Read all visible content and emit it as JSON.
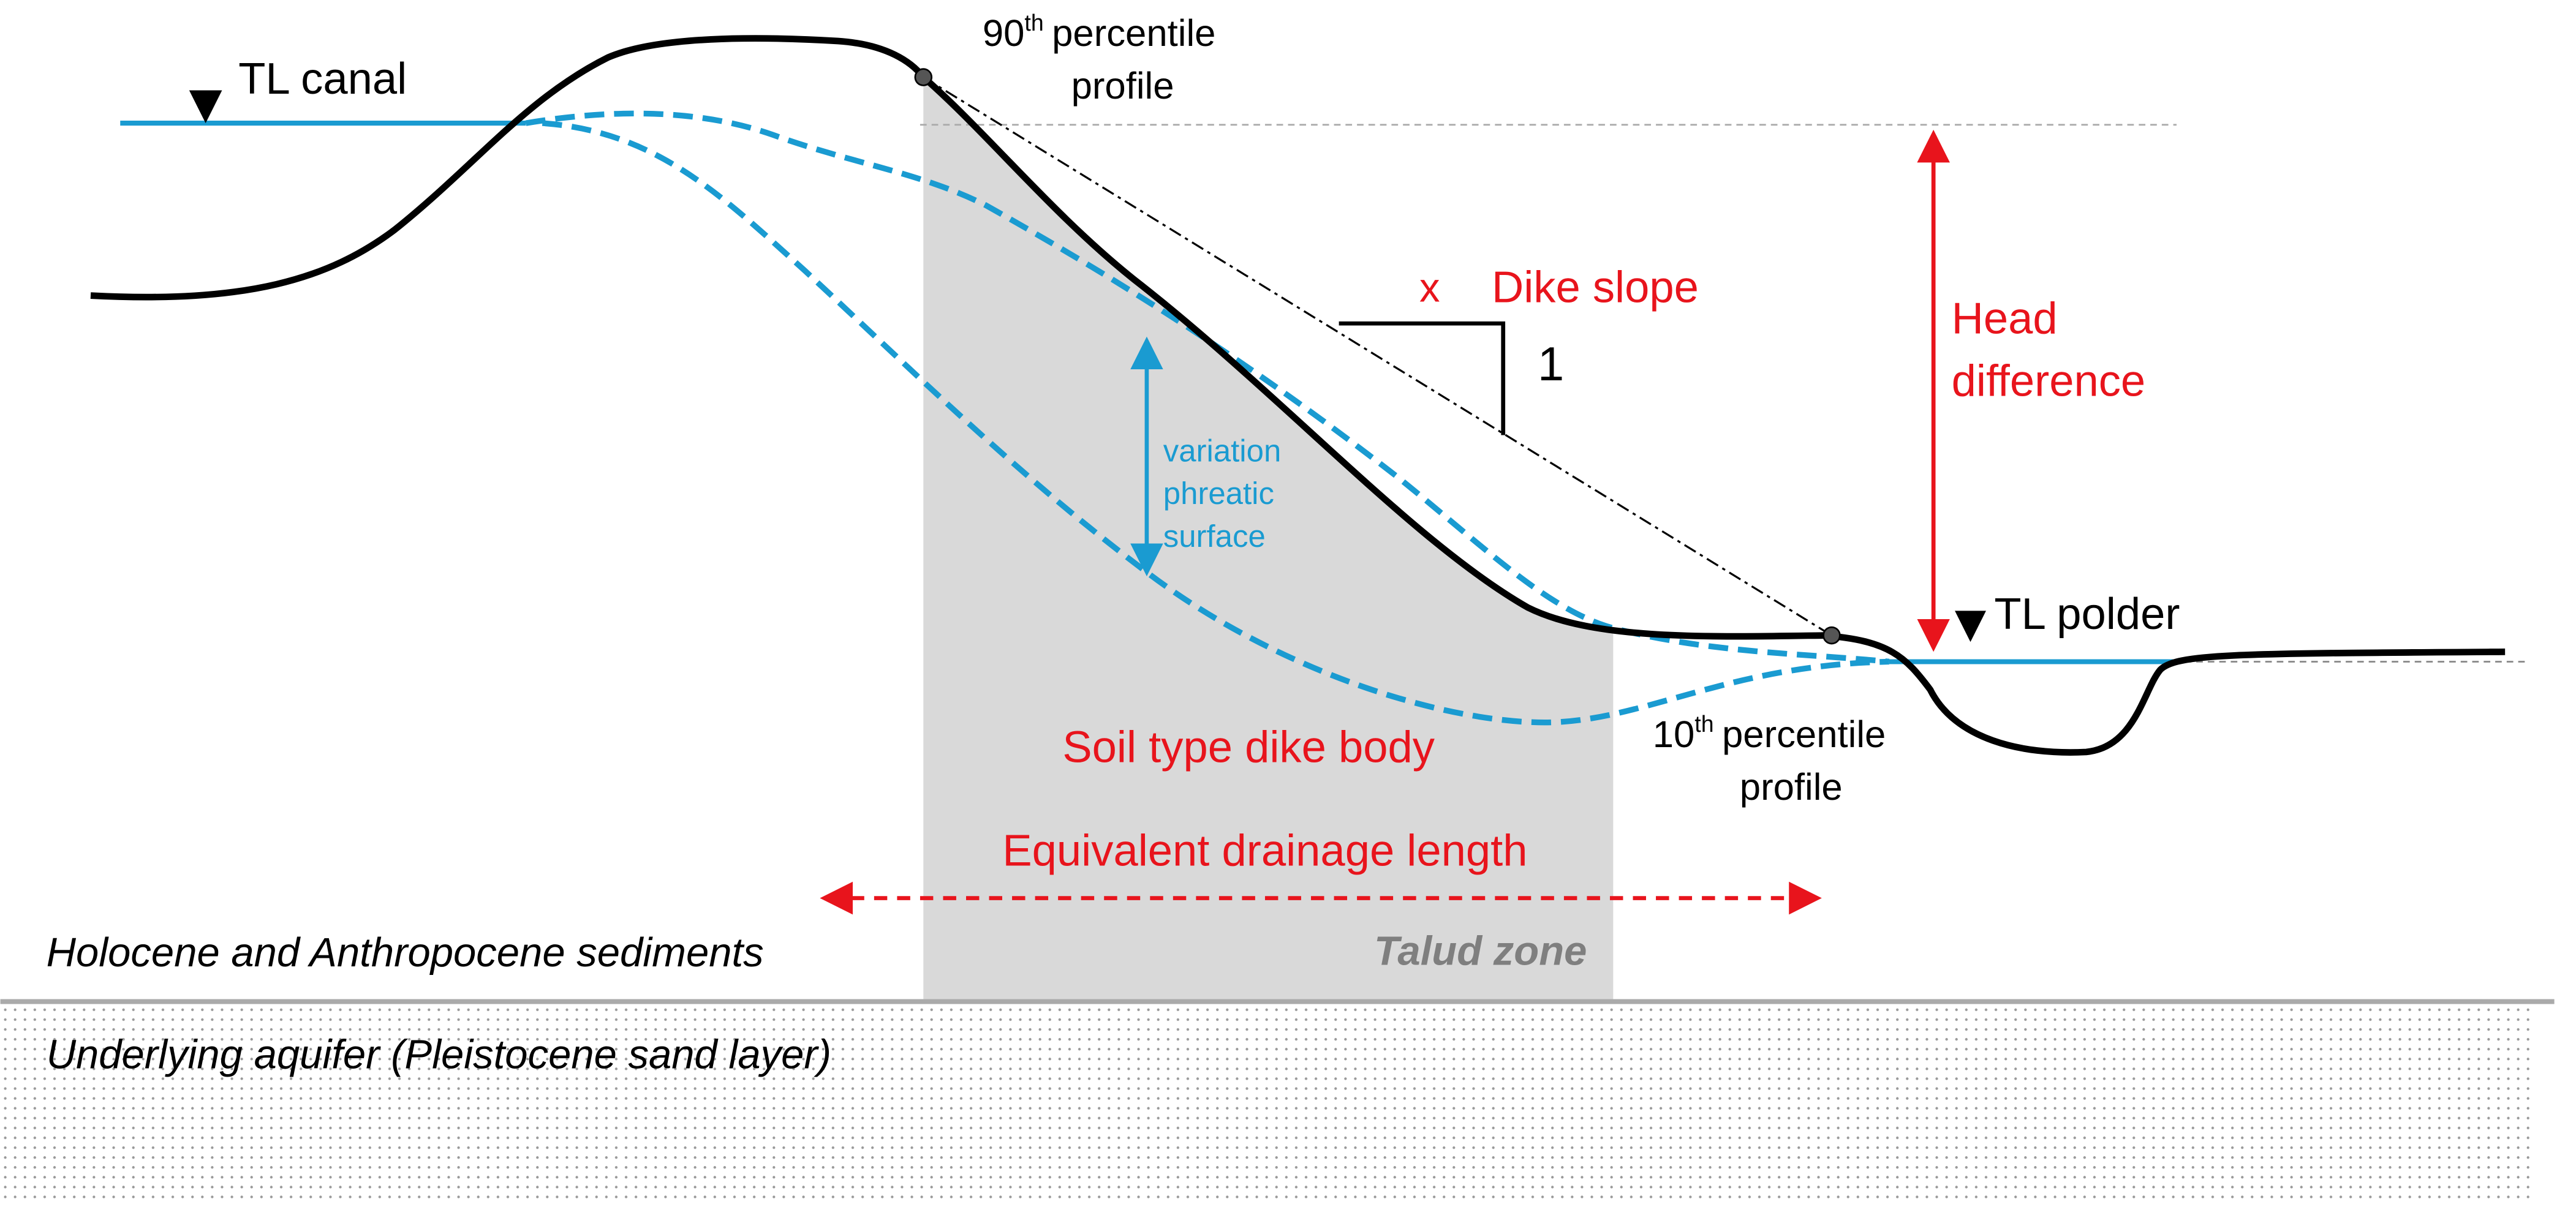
{
  "labels": {
    "tl_canal": "TL canal",
    "tl_polder": "TL polder",
    "p90": {
      "number": "90",
      "suffix": "th",
      "line1": "percentile",
      "line2": "profile"
    },
    "p10": {
      "number": "10",
      "suffix": "th",
      "line1": "percentile",
      "line2": "profile"
    },
    "slope_x": "x",
    "dike_slope": "Dike slope",
    "slope_one": "1",
    "head_difference": [
      "Head",
      "difference"
    ],
    "variation": [
      "variation",
      "phreatic",
      "surface"
    ],
    "soil_type": "Soil type dike body",
    "drainage_length": "Equivalent drainage length",
    "talud_zone": "Talud zone",
    "holocene": "Holocene and Anthropocene sediments",
    "aquifer": "Underlying aquifer (Pleistocene sand layer)"
  }
}
